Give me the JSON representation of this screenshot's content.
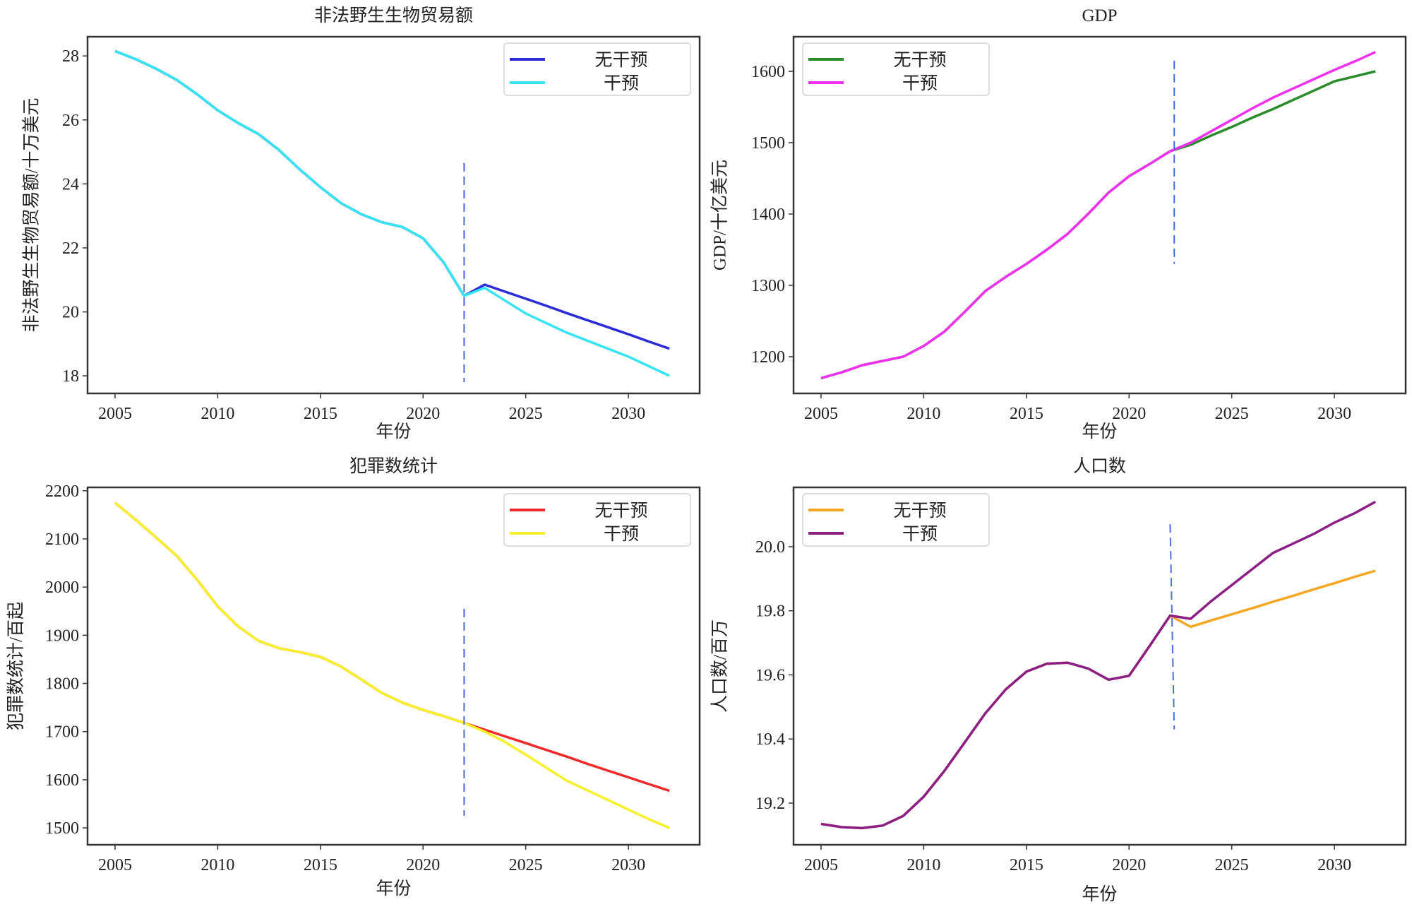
{
  "chart_data": [
    {
      "type": "line",
      "title": "非法野生生物贸易额",
      "xlabel": "年份",
      "ylabel": "非法野生生物贸易额/十万美元",
      "xlim": [
        2003.66,
        2033.47
      ],
      "ylim": [
        17.45,
        28.6
      ],
      "xticks": [
        "2005",
        "2010",
        "2015",
        "2020",
        "2025",
        "2030"
      ],
      "yticks": [
        "18",
        "20",
        "22",
        "24",
        "26",
        "28"
      ],
      "legend": "top-right",
      "vline": {
        "x": [
          2022,
          2022
        ],
        "y": [
          24.65,
          17.8
        ],
        "color": "#4a6fd6"
      },
      "years": [
        2005,
        2006,
        2007,
        2008,
        2009,
        2010,
        2011,
        2012,
        2013,
        2014,
        2015,
        2016,
        2017,
        2018,
        2019,
        2020,
        2021,
        2022,
        2023,
        2024,
        2025,
        2026,
        2027,
        2028,
        2029,
        2030,
        2031,
        2032
      ],
      "series": [
        {
          "name": "无干预",
          "color": "#2b2bd9",
          "values": [
            28.15,
            27.9,
            27.6,
            27.25,
            26.8,
            26.3,
            25.9,
            25.55,
            25.05,
            24.45,
            23.9,
            23.4,
            23.05,
            22.8,
            22.65,
            22.3,
            21.55,
            20.5,
            20.85,
            20.63,
            20.41,
            20.19,
            19.96,
            19.74,
            19.52,
            19.3,
            19.07,
            18.85
          ]
        },
        {
          "name": "干预",
          "color": "#36e4f2",
          "values": [
            28.15,
            27.9,
            27.6,
            27.25,
            26.8,
            26.3,
            25.9,
            25.55,
            25.05,
            24.45,
            23.9,
            23.4,
            23.05,
            22.8,
            22.65,
            22.3,
            21.55,
            20.5,
            20.75,
            20.35,
            19.95,
            19.65,
            19.35,
            19.1,
            18.85,
            18.6,
            18.3,
            18.0
          ]
        }
      ]
    },
    {
      "type": "line",
      "title": "GDP",
      "xlabel": "年份",
      "ylabel": "GDP/十亿美元",
      "xlim": [
        2003.66,
        2033.47
      ],
      "ylim": [
        1148.5,
        1648.5
      ],
      "xticks": [
        "2005",
        "2010",
        "2015",
        "2020",
        "2025",
        "2030"
      ],
      "yticks": [
        "1200",
        "1300",
        "1400",
        "1500",
        "1600"
      ],
      "legend": "top-left",
      "vline": {
        "x": [
          2022.2,
          2022.2
        ],
        "y": [
          1615,
          1330
        ],
        "color": "#4a6fd6"
      },
      "years": [
        2005,
        2006,
        2007,
        2008,
        2009,
        2010,
        2011,
        2012,
        2013,
        2014,
        2015,
        2016,
        2017,
        2018,
        2019,
        2020,
        2021,
        2022,
        2023,
        2024,
        2025,
        2026,
        2027,
        2028,
        2029,
        2030,
        2031,
        2032
      ],
      "series": [
        {
          "name": "无干预",
          "color": "#2a8c2a",
          "values": [
            1170,
            1178,
            1188,
            1194,
            1200,
            1215,
            1235,
            1263,
            1292,
            1312,
            1330,
            1350,
            1372,
            1400,
            1430,
            1453,
            1470,
            1488,
            1497,
            1510,
            1522,
            1535,
            1547,
            1560,
            1573,
            1586,
            1593,
            1600
          ]
        },
        {
          "name": "干预",
          "color": "#f032f0",
          "values": [
            1170,
            1178,
            1188,
            1194,
            1200,
            1215,
            1235,
            1263,
            1292,
            1312,
            1330,
            1350,
            1372,
            1400,
            1430,
            1453,
            1470,
            1488,
            1500,
            1516,
            1532,
            1548,
            1563,
            1576,
            1589,
            1602,
            1614,
            1627
          ]
        }
      ]
    },
    {
      "type": "line",
      "title": "犯罪数统计",
      "xlabel": "年份",
      "ylabel": "犯罪数统计/百起",
      "xlim": [
        2003.66,
        2033.47
      ],
      "ylim": [
        1465,
        2207
      ],
      "xticks": [
        "2005",
        "2010",
        "2015",
        "2020",
        "2025",
        "2030"
      ],
      "yticks": [
        "1500",
        "1600",
        "1700",
        "1800",
        "1900",
        "2000",
        "2100",
        "2200"
      ],
      "legend": "top-right",
      "vline": {
        "x": [
          2022,
          2022
        ],
        "y": [
          1955,
          1525
        ],
        "color": "#4a6fd6"
      },
      "years": [
        2005,
        2006,
        2007,
        2008,
        2009,
        2010,
        2011,
        2012,
        2013,
        2014,
        2015,
        2016,
        2017,
        2018,
        2019,
        2020,
        2021,
        2022,
        2023,
        2024,
        2025,
        2026,
        2027,
        2028,
        2029,
        2030,
        2031,
        2032
      ],
      "series": [
        {
          "name": "无干预",
          "color": "#f02a2a",
          "values": [
            2175,
            2140,
            2103,
            2065,
            2015,
            1960,
            1918,
            1888,
            1873,
            1865,
            1855,
            1835,
            1808,
            1780,
            1760,
            1745,
            1732,
            1718,
            1704,
            1690,
            1676,
            1662,
            1648,
            1633,
            1619,
            1605,
            1591,
            1577
          ]
        },
        {
          "name": "干预",
          "color": "#f7f02a",
          "values": [
            2175,
            2140,
            2103,
            2065,
            2015,
            1960,
            1918,
            1888,
            1873,
            1865,
            1855,
            1835,
            1808,
            1780,
            1760,
            1745,
            1732,
            1718,
            1700,
            1678,
            1652,
            1625,
            1598,
            1578,
            1558,
            1538,
            1518,
            1500
          ]
        }
      ]
    },
    {
      "type": "line",
      "title": "人口数",
      "xlabel": "年份",
      "ylabel": "人口数/百万",
      "xlim": [
        2003.66,
        2033.47
      ],
      "ylim": [
        19.07,
        20.185
      ],
      "xticks": [
        "2005",
        "2010",
        "2015",
        "2020",
        "2025",
        "2030"
      ],
      "yticks": [
        "19.2",
        "19.4",
        "19.6",
        "19.8",
        "20.0"
      ],
      "legend": "top-left",
      "vline": {
        "x": [
          2022,
          2022.2
        ],
        "y": [
          20.07,
          19.43
        ],
        "color": "#4a6fd6"
      },
      "years": [
        2005,
        2006,
        2007,
        2008,
        2009,
        2010,
        2011,
        2012,
        2013,
        2014,
        2015,
        2016,
        2017,
        2018,
        2019,
        2020,
        2021,
        2022,
        2023,
        2024,
        2025,
        2026,
        2027,
        2028,
        2029,
        2030,
        2031,
        2032
      ],
      "series": [
        {
          "name": "无干预",
          "color": "#f5a623",
          "values": [
            19.135,
            19.125,
            19.122,
            19.13,
            19.16,
            19.22,
            19.3,
            19.39,
            19.48,
            19.555,
            19.61,
            19.635,
            19.638,
            19.62,
            19.585,
            19.597,
            19.69,
            19.785,
            19.75,
            19.77,
            19.789,
            19.808,
            19.828,
            19.847,
            19.867,
            19.886,
            19.906,
            19.925
          ]
        },
        {
          "name": "干预",
          "color": "#8b1f86",
          "values": [
            19.135,
            19.125,
            19.122,
            19.13,
            19.16,
            19.22,
            19.3,
            19.39,
            19.48,
            19.555,
            19.61,
            19.635,
            19.638,
            19.62,
            19.585,
            19.597,
            19.69,
            19.785,
            19.775,
            19.83,
            19.88,
            19.93,
            19.98,
            20.01,
            20.04,
            20.075,
            20.105,
            20.14
          ]
        }
      ]
    }
  ]
}
